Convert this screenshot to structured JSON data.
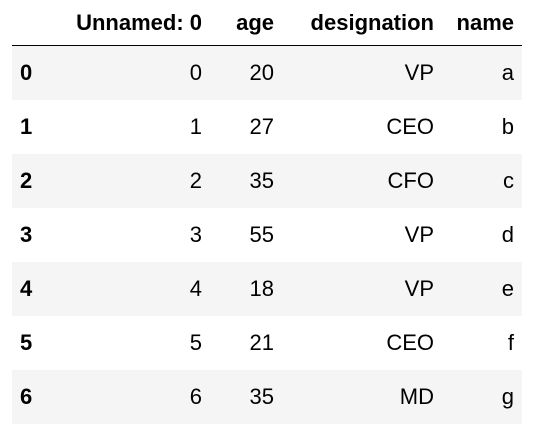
{
  "table": {
    "columns": [
      "",
      "Unnamed: 0",
      "age",
      "designation",
      "name"
    ],
    "rows": [
      {
        "index": "0",
        "unnamed": "0",
        "age": "20",
        "designation": "VP",
        "name": "a"
      },
      {
        "index": "1",
        "unnamed": "1",
        "age": "27",
        "designation": "CEO",
        "name": "b"
      },
      {
        "index": "2",
        "unnamed": "2",
        "age": "35",
        "designation": "CFO",
        "name": "c"
      },
      {
        "index": "3",
        "unnamed": "3",
        "age": "55",
        "designation": "VP",
        "name": "d"
      },
      {
        "index": "4",
        "unnamed": "4",
        "age": "18",
        "designation": "VP",
        "name": "e"
      },
      {
        "index": "5",
        "unnamed": "5",
        "age": "21",
        "designation": "CEO",
        "name": "f"
      },
      {
        "index": "6",
        "unnamed": "6",
        "age": "35",
        "designation": "MD",
        "name": "g"
      }
    ]
  }
}
